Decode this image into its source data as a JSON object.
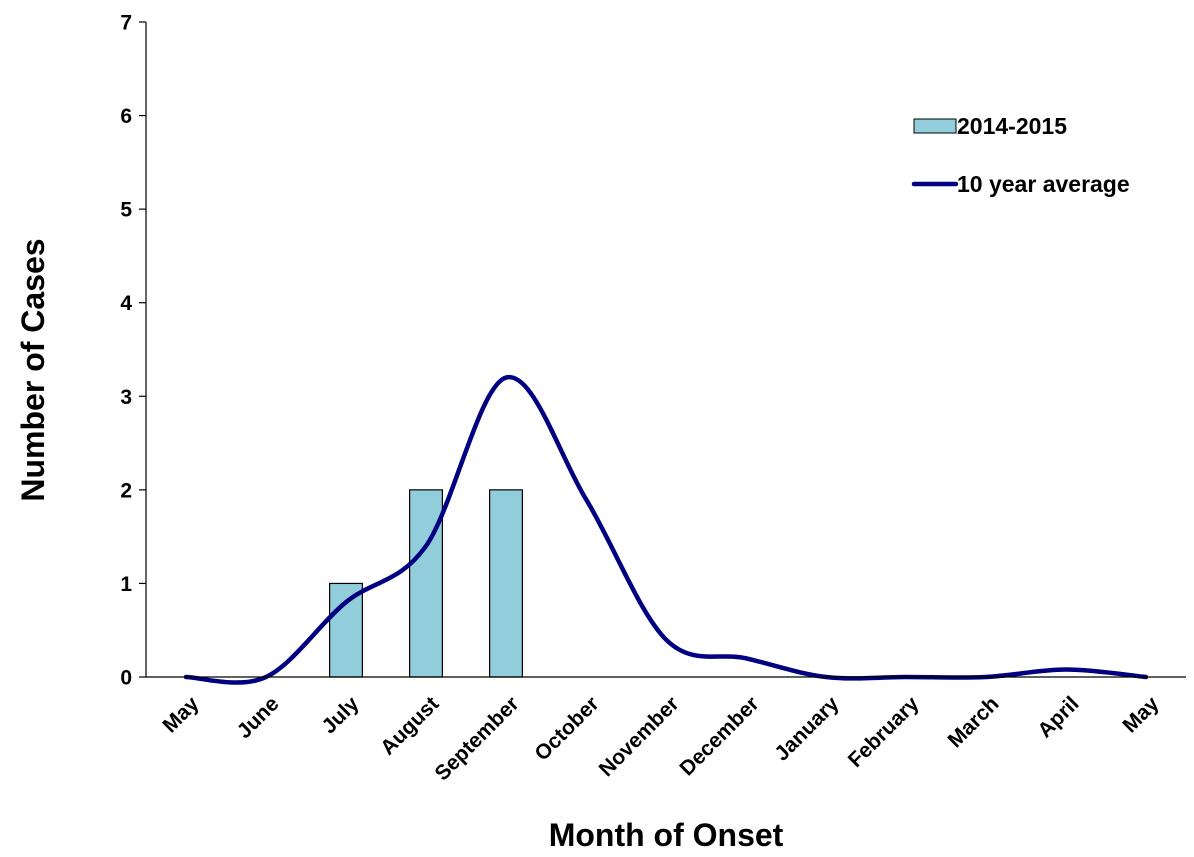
{
  "chart_data": {
    "type": "bar",
    "categories": [
      "May",
      "June",
      "July",
      "August",
      "September",
      "October",
      "November",
      "December",
      "January",
      "February",
      "March",
      "April",
      "May"
    ],
    "series": [
      {
        "name": "2014-2015",
        "type": "bar",
        "color": "#92CDDC",
        "values": [
          0,
          0,
          1,
          2,
          2,
          0,
          0,
          0,
          0,
          0,
          0,
          0,
          0
        ]
      },
      {
        "name": "10 year average",
        "type": "line",
        "smooth": true,
        "color": "#000080",
        "values": [
          0,
          0,
          0.8,
          1.4,
          3.2,
          1.9,
          0.4,
          0.2,
          0,
          0,
          0,
          0.08,
          0
        ]
      }
    ],
    "xlabel": "Month of Onset",
    "ylabel": "Number of Cases",
    "ylim": [
      0,
      7
    ],
    "yticks": [
      "0",
      "1",
      "2",
      "3",
      "4",
      "5",
      "6",
      "7"
    ],
    "grid": false,
    "legend_position": "top-right"
  }
}
